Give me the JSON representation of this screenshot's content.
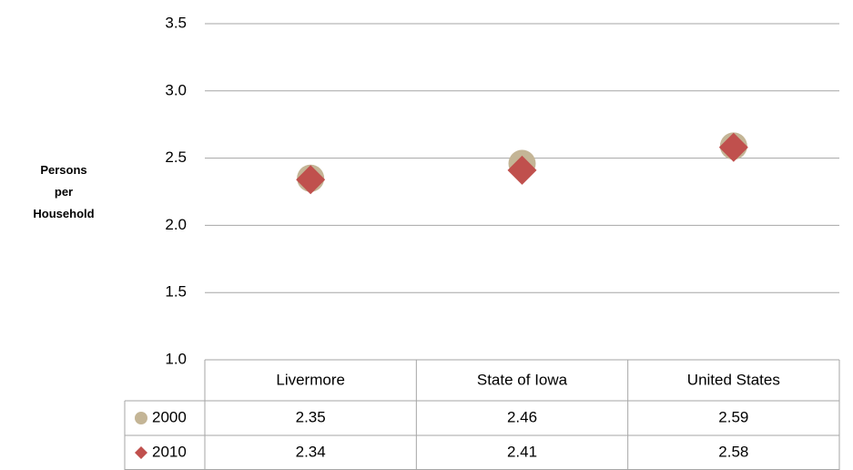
{
  "chart_data": {
    "type": "scatter",
    "y_label": "Persons per Household",
    "categories": [
      "Livermore",
      "State of Iowa",
      "United States"
    ],
    "series": [
      {
        "name": "2000",
        "color": "#c4b596",
        "marker": "circle",
        "values": [
          2.35,
          2.46,
          2.59
        ]
      },
      {
        "name": "2010",
        "color": "#c0504d",
        "marker": "diamond",
        "values": [
          2.34,
          2.41,
          2.58
        ]
      }
    ],
    "ylim": [
      1,
      3.5
    ],
    "yticks": [
      {
        "value": 1,
        "label": "1.0"
      },
      1.5,
      {
        "value": 2,
        "label": "2.0"
      },
      2.5,
      {
        "value": 3,
        "label": "3.0"
      },
      3.5
    ],
    "grid": true,
    "data_table": true
  }
}
